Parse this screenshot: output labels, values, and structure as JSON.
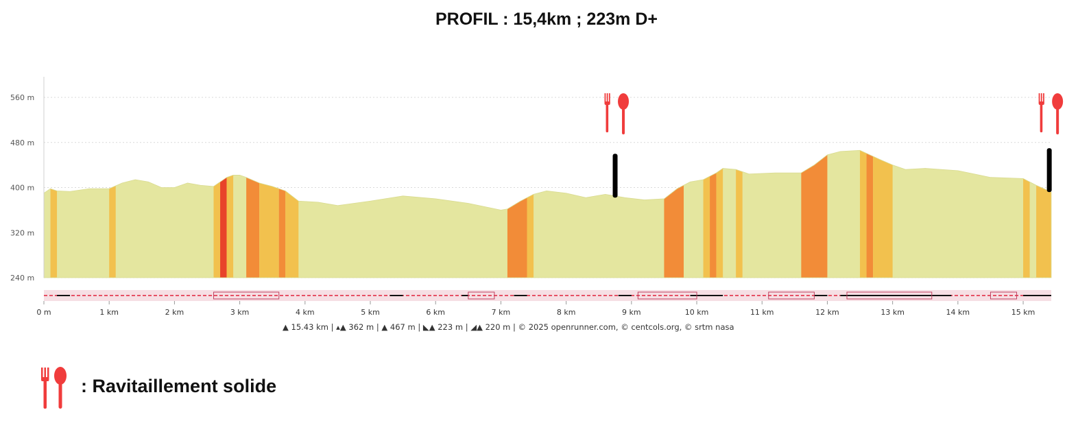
{
  "title": "PROFIL : 15,4km ; 223m D+",
  "chart_data": {
    "type": "area",
    "ylabel": "",
    "xlabel": "",
    "ylim": [
      240,
      560
    ],
    "xlim": [
      0,
      15.43
    ],
    "yticks": [
      "240 m",
      "320 m",
      "400 m",
      "480 m",
      "560 m"
    ],
    "ytick_values": [
      240,
      320,
      400,
      480,
      560
    ],
    "xticks": [
      "0 m",
      "1 km",
      "2 km",
      "3 km",
      "4 km",
      "5 km",
      "6 km",
      "7 km",
      "8 km",
      "9 km",
      "10 km",
      "11 km",
      "12 km",
      "13 km",
      "14 km",
      "15 km"
    ],
    "xtick_values": [
      0,
      1,
      2,
      3,
      4,
      5,
      6,
      7,
      8,
      9,
      10,
      11,
      12,
      13,
      14,
      15
    ],
    "grid": true,
    "series": [
      {
        "x": [
          0,
          0.1,
          0.2,
          0.4,
          0.7,
          1.0,
          1.2,
          1.4,
          1.6,
          1.8,
          2.0,
          2.2,
          2.4,
          2.6,
          2.8,
          2.9,
          3.0,
          3.1,
          3.3,
          3.5,
          3.7,
          3.9,
          4.2,
          4.5,
          5.0,
          5.5,
          6.0,
          6.5,
          7.0,
          7.1,
          7.3,
          7.5,
          7.7,
          8.0,
          8.3,
          8.6,
          8.9,
          9.2,
          9.5,
          9.7,
          9.9,
          10.1,
          10.3,
          10.4,
          10.6,
          10.8,
          11.2,
          11.6,
          11.8,
          12.0,
          12.2,
          12.5,
          12.8,
          13.0,
          13.2,
          13.5,
          14.0,
          14.5,
          15.0,
          15.2,
          15.43
        ],
        "values": [
          390,
          398,
          394,
          393,
          398,
          398,
          408,
          414,
          410,
          400,
          400,
          408,
          404,
          402,
          418,
          422,
          422,
          418,
          408,
          402,
          394,
          376,
          374,
          368,
          376,
          385,
          380,
          372,
          360,
          362,
          376,
          388,
          394,
          390,
          382,
          388,
          382,
          378,
          380,
          398,
          410,
          414,
          426,
          434,
          432,
          424,
          426,
          426,
          440,
          458,
          464,
          466,
          450,
          440,
          432,
          434,
          430,
          418,
          416,
          404,
          392
        ]
      }
    ],
    "gradient_bands": [
      {
        "x0": 0.1,
        "x1": 0.2,
        "color": "#f2c14e"
      },
      {
        "x0": 1.0,
        "x1": 1.1,
        "color": "#f2c14e"
      },
      {
        "x0": 2.6,
        "x1": 2.7,
        "color": "#f2c14e"
      },
      {
        "x0": 2.7,
        "x1": 2.8,
        "color": "#e8432a"
      },
      {
        "x0": 2.8,
        "x1": 2.9,
        "color": "#f2c14e"
      },
      {
        "x0": 3.1,
        "x1": 3.3,
        "color": "#f28c38"
      },
      {
        "x0": 3.3,
        "x1": 3.6,
        "color": "#f2c14e"
      },
      {
        "x0": 3.6,
        "x1": 3.7,
        "color": "#f28c38"
      },
      {
        "x0": 3.7,
        "x1": 3.9,
        "color": "#f2c14e"
      },
      {
        "x0": 7.1,
        "x1": 7.4,
        "color": "#f28c38"
      },
      {
        "x0": 7.4,
        "x1": 7.5,
        "color": "#f2c14e"
      },
      {
        "x0": 9.5,
        "x1": 9.8,
        "color": "#f28c38"
      },
      {
        "x0": 10.1,
        "x1": 10.2,
        "color": "#f2c14e"
      },
      {
        "x0": 10.2,
        "x1": 10.3,
        "color": "#f28c38"
      },
      {
        "x0": 10.3,
        "x1": 10.4,
        "color": "#f2c14e"
      },
      {
        "x0": 10.6,
        "x1": 10.7,
        "color": "#f2c14e"
      },
      {
        "x0": 11.6,
        "x1": 12.0,
        "color": "#f28c38"
      },
      {
        "x0": 12.5,
        "x1": 12.6,
        "color": "#f2c14e"
      },
      {
        "x0": 12.6,
        "x1": 12.7,
        "color": "#f28c38"
      },
      {
        "x0": 12.7,
        "x1": 13.0,
        "color": "#f2c14e"
      },
      {
        "x0": 15.0,
        "x1": 15.1,
        "color": "#f2c14e"
      },
      {
        "x0": 15.2,
        "x1": 15.43,
        "color": "#f2c14e"
      }
    ],
    "markers": [
      {
        "x": 8.75,
        "type": "ravitaillement"
      },
      {
        "x": 15.4,
        "type": "ravitaillement"
      }
    ],
    "stats_line": [
      "15.43 km",
      "362 m",
      "467 m",
      "223 m",
      "220 m",
      "© 2025 openrunner.com, © centcols.org, © srtm nasa"
    ],
    "colors": {
      "base": "#e4e69f",
      "light": "#f2c14e",
      "medium": "#f28c38",
      "steep": "#e8432a",
      "marker": "#f03c3c"
    }
  },
  "legend": {
    "label": ": Ravitaillement solide"
  }
}
